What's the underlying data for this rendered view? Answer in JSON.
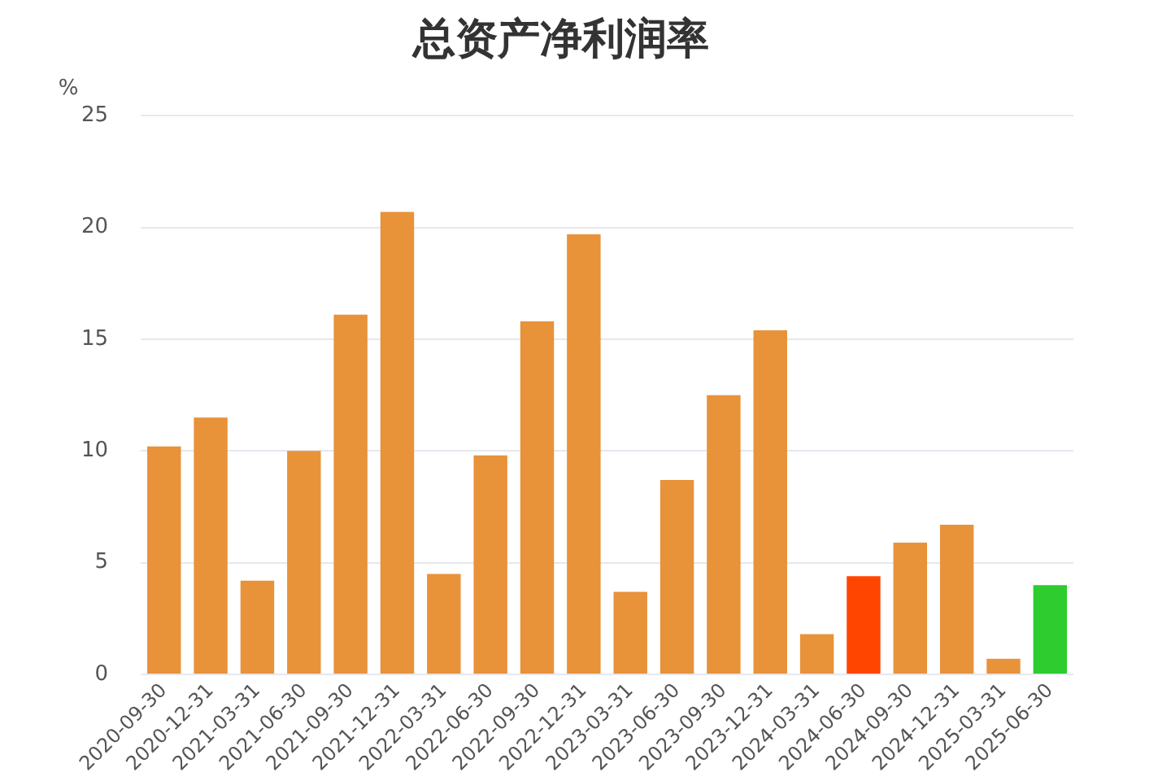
{
  "chart_data": {
    "type": "bar",
    "title": "总资产净利润率",
    "ylabel": "%",
    "categories": [
      "2020-09-30",
      "2020-12-31",
      "2021-03-31",
      "2021-06-30",
      "2021-09-30",
      "2021-12-31",
      "2022-03-31",
      "2022-06-30",
      "2022-09-30",
      "2022-12-31",
      "2023-03-31",
      "2023-06-30",
      "2023-09-30",
      "2023-12-31",
      "2024-03-31",
      "2024-06-30",
      "2024-09-30",
      "2024-12-31",
      "2025-03-31",
      "2025-06-30"
    ],
    "values": [
      10.2,
      11.5,
      4.2,
      10.0,
      16.1,
      20.7,
      4.5,
      9.8,
      15.8,
      19.7,
      3.7,
      8.7,
      12.5,
      15.4,
      1.8,
      4.4,
      5.9,
      6.7,
      0.7,
      4.0
    ],
    "colors": [
      "#e8923a",
      "#e8923a",
      "#e8923a",
      "#e8923a",
      "#e8923a",
      "#e8923a",
      "#e8923a",
      "#e8923a",
      "#e8923a",
      "#e8923a",
      "#e8923a",
      "#e8923a",
      "#e8923a",
      "#e8923a",
      "#e8923a",
      "#ff4500",
      "#e8923a",
      "#e8923a",
      "#e8923a",
      "#2ecc2e"
    ],
    "ylim": [
      0,
      25
    ],
    "yticks": [
      0,
      5,
      10,
      15,
      20,
      25
    ],
    "grid": "y"
  }
}
